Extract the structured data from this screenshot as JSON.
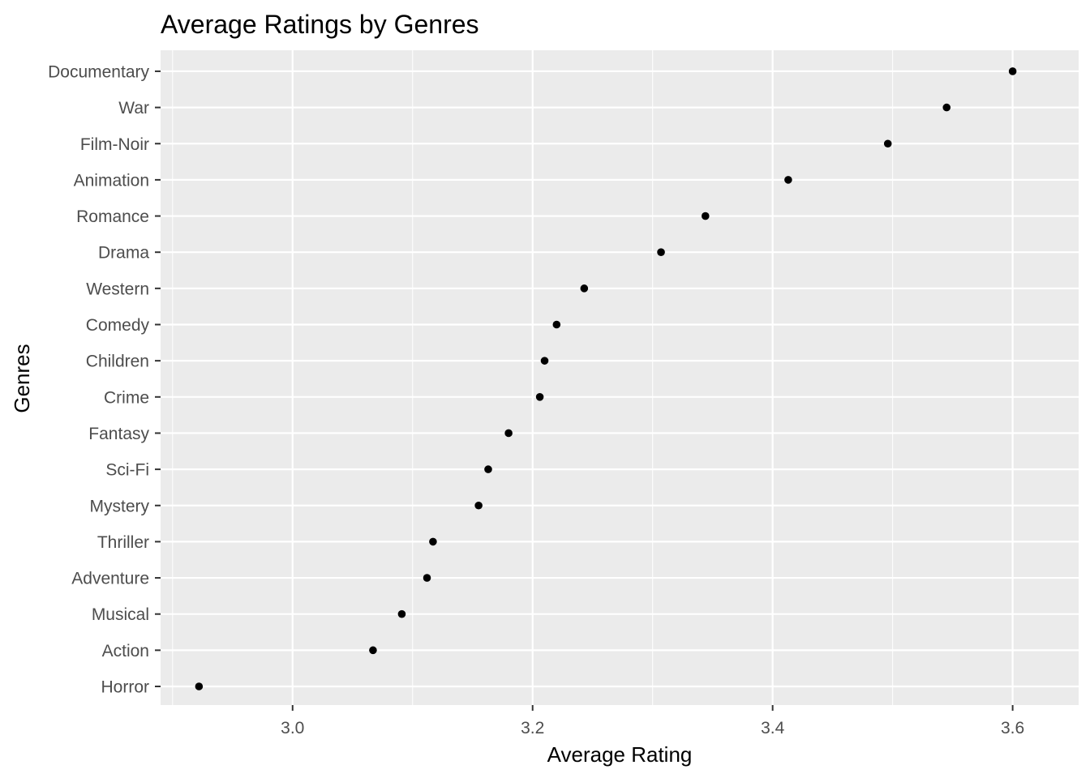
{
  "chart_data": {
    "type": "scatter",
    "title": "Average Ratings by Genres",
    "xlabel": "Average Rating",
    "ylabel": "Genres",
    "xlim": [
      2.89,
      3.655
    ],
    "x_ticks": [
      "3.0",
      "3.2",
      "3.4",
      "3.6"
    ],
    "grid": true,
    "panel_background": "#EBEBEB",
    "grid_color": "#FFFFFF",
    "point_color": "#000000",
    "categories": [
      "Horror",
      "Action",
      "Musical",
      "Adventure",
      "Thriller",
      "Mystery",
      "Sci-Fi",
      "Fantasy",
      "Crime",
      "Children",
      "Comedy",
      "Western",
      "Drama",
      "Romance",
      "Animation",
      "Film-Noir",
      "War",
      "Documentary"
    ],
    "values": [
      2.922,
      3.067,
      3.091,
      3.112,
      3.117,
      3.155,
      3.163,
      3.18,
      3.206,
      3.21,
      3.22,
      3.243,
      3.307,
      3.344,
      3.413,
      3.496,
      3.545,
      3.6
    ]
  }
}
